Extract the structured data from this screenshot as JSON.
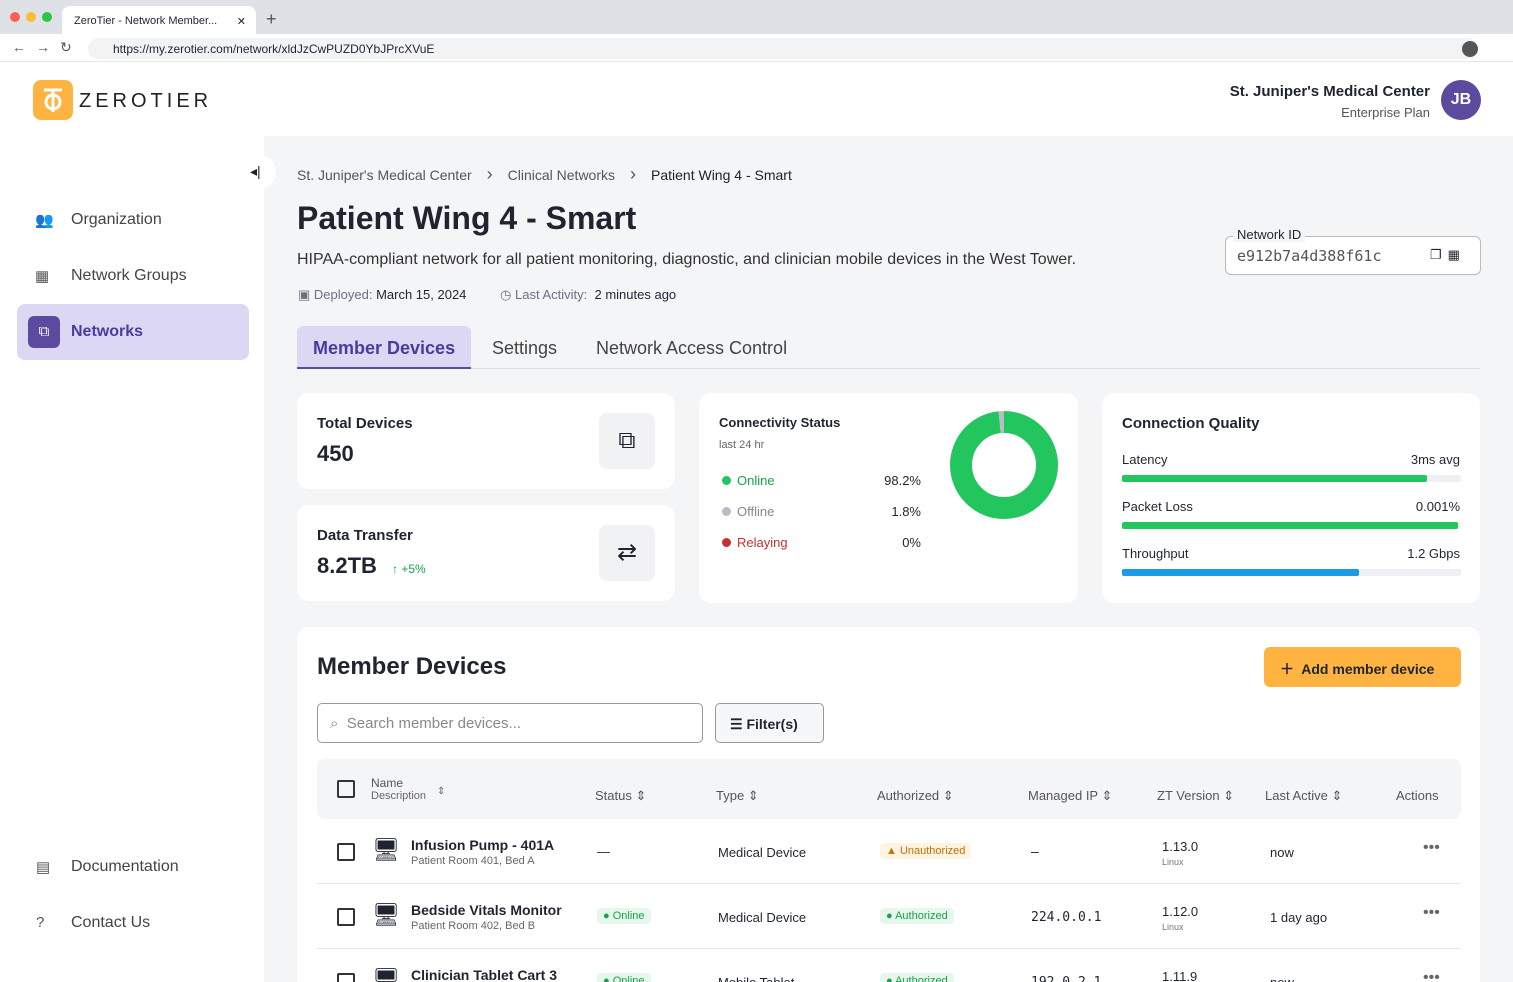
{
  "browser": {
    "tab_title": "ZeroTier - Network Member...",
    "url": "https://my.zerotier.com/network/xldJzCwPUZD0YbJPrcXVuE"
  },
  "header": {
    "brand": "ZEROTIER",
    "org": "St. Juniper's Medical Center",
    "plan": "Enterprise Plan",
    "avatar": "JB"
  },
  "sidebar": {
    "items": [
      "Organization",
      "Network Groups",
      "Networks"
    ],
    "active": 2,
    "footer_items": [
      "Documentation",
      "Contact Us"
    ]
  },
  "breadcrumb": [
    "St. Juniper's Medical Center",
    "Clinical Networks",
    "Patient Wing 4 - Smart"
  ],
  "network": {
    "title": "Patient Wing 4 - Smart",
    "description": "HIPAA-compliant network for all patient monitoring, diagnostic, and clinician mobile devices in the West Tower.",
    "deployed_label": "Deployed:",
    "deployed": "March 15, 2024",
    "activity_label": "Last Activity:",
    "activity": "2 minutes ago",
    "id_label": "Network ID",
    "id": "e912b7a4d388f61c"
  },
  "tabs": {
    "items": [
      "Member Devices",
      "Settings",
      "Network Access Control"
    ],
    "active": 0
  },
  "stats": {
    "total_label": "Total Devices",
    "total": "450",
    "transfer_label": "Data Transfer",
    "transfer": "8.2TB",
    "transfer_change": "+5%"
  },
  "connectivity": {
    "title": "Connectivity Status",
    "subtitle": "last 24 hr",
    "items": [
      {
        "label": "Online",
        "value": 98.2,
        "value_label": "98.2%",
        "color": "#22c55e"
      },
      {
        "label": "Offline",
        "value": 1.8,
        "value_label": "1.8%",
        "color": "#b8bcc4"
      },
      {
        "label": "Relaying",
        "value": 0,
        "value_label": "0%",
        "color": "#c53030"
      }
    ]
  },
  "quality": {
    "title": "Connection Quality",
    "metrics": [
      {
        "label": "Latency",
        "value": "3ms avg",
        "level": 90,
        "color": "#22c55e"
      },
      {
        "label": "Packet Loss",
        "value": "0.001%",
        "level": 99,
        "color": "#22c55e"
      },
      {
        "label": "Throughput",
        "value": "1.2 Gbps",
        "level": 70,
        "color": "#1a9be6"
      }
    ]
  },
  "members": {
    "title": "Member Devices",
    "add_button": "Add member device",
    "search_placeholder": "Search member devices...",
    "filter": "Filter(s)",
    "name_column": "Name",
    "description_column": "Description",
    "columns": [
      "Status",
      "Type",
      "Authorized",
      "Managed IP",
      "ZT Version",
      "Last Active",
      "Actions"
    ],
    "rows": [
      {
        "name": "Infusion Pump - 401A",
        "description": "Patient Room 401, Bed A",
        "status": "—",
        "type": "Medical Device",
        "authorized": "Unauthorized",
        "ip": "—",
        "version": "1.13.0",
        "os": "Linux",
        "last_active": "now"
      },
      {
        "name": "Bedside Vitals Monitor",
        "description": "Patient Room 402, Bed B",
        "status": "Online",
        "type": "Medical Device",
        "authorized": "Authorized",
        "ip": "224.0.0.1",
        "version": "1.12.0",
        "os": "Linux",
        "last_active": "1 day ago"
      },
      {
        "name": "Clinician Tablet Cart 3",
        "status": "Online",
        "type": "Mobile Tablet",
        "authorized": "Authorized",
        "ip": "192.0.2.1",
        "version": "1.11.9",
        "last_active": "now"
      }
    ]
  }
}
